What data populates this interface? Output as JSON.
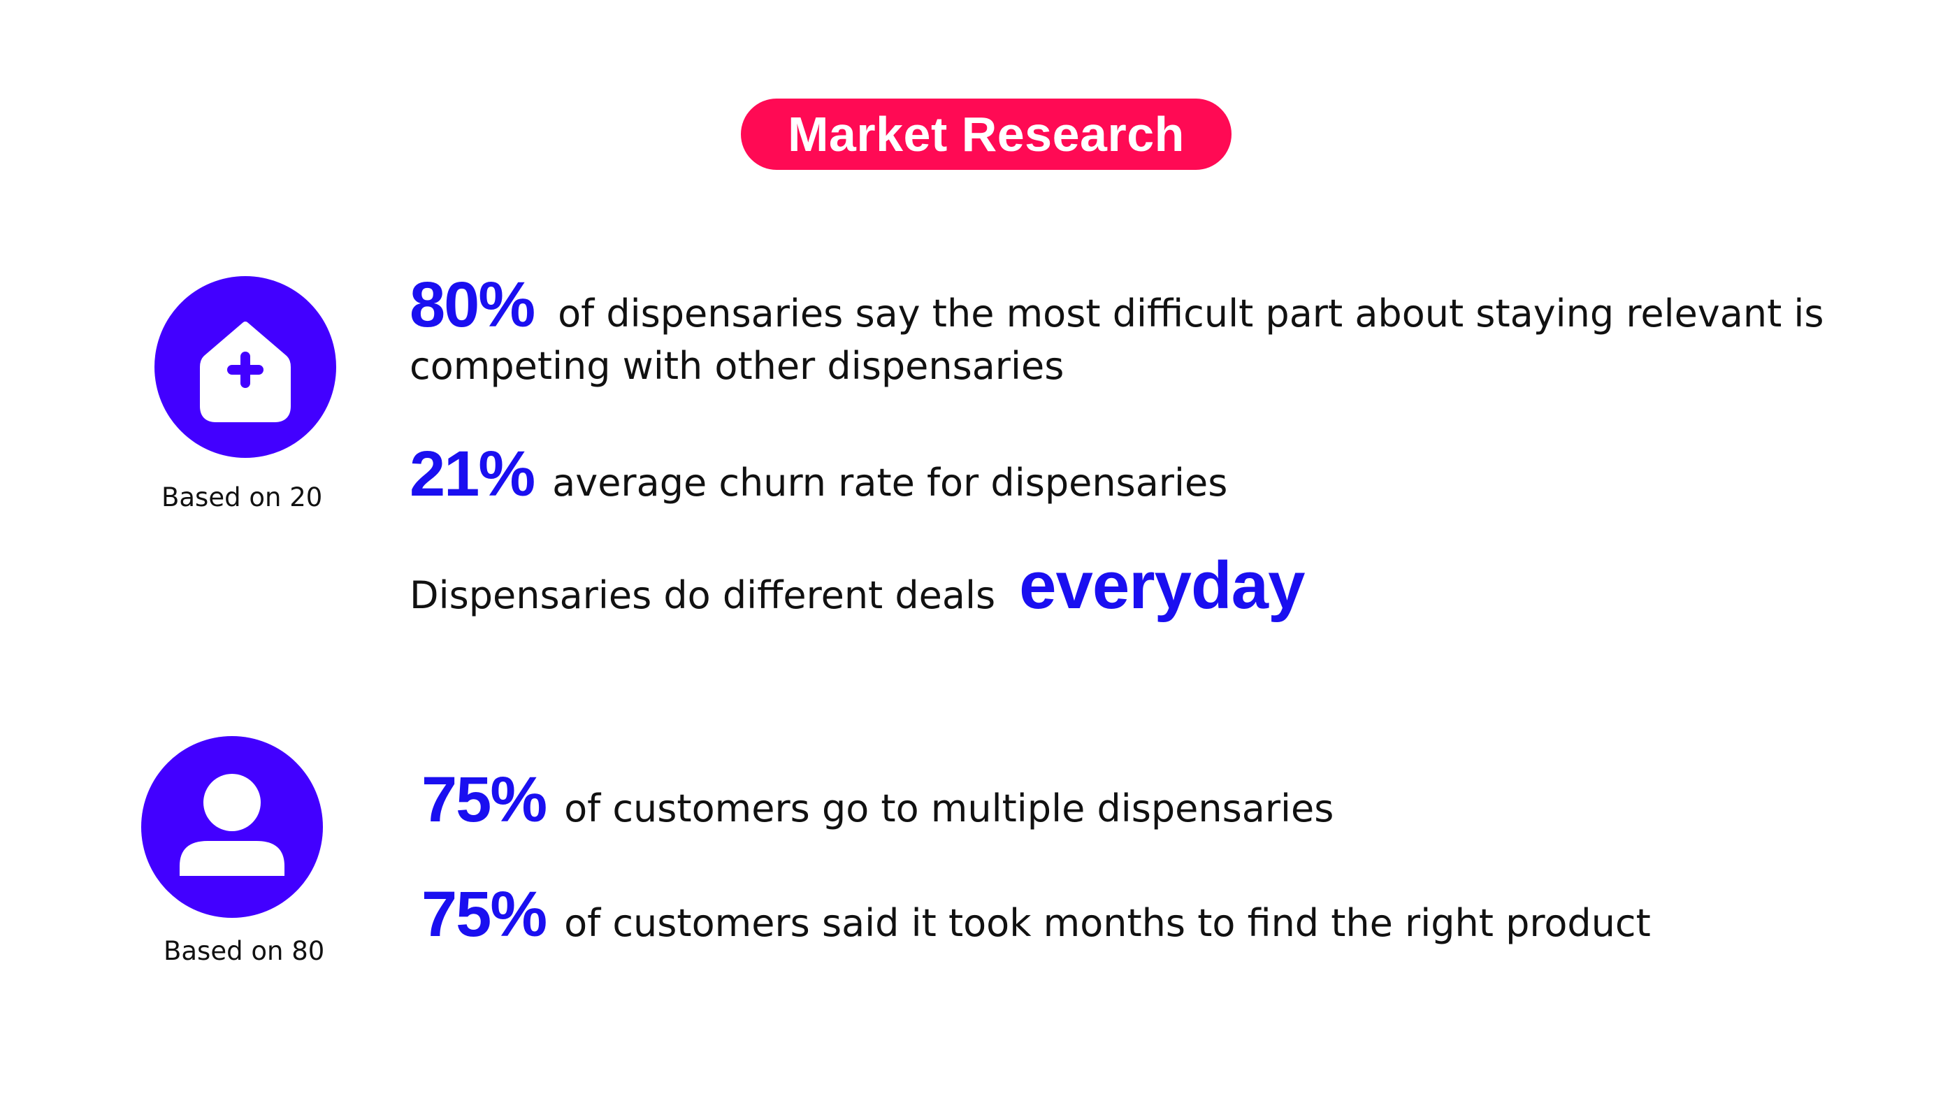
{
  "title": "Market Research",
  "colors": {
    "accent_pink": "#ff0a54",
    "icon_purple": "#4200ff",
    "stat_blue": "#1a0ff0",
    "text": "#111111"
  },
  "sections": [
    {
      "icon": "house-plus-icon",
      "caption": "Based on 20",
      "stats": [
        {
          "value": "80%",
          "text_line1": "of dispensaries say the most difficult part about staying relevant is",
          "text_line2": "competing with other dispensaries"
        },
        {
          "value": "21%",
          "text": "average churn rate for dispensaries"
        },
        {
          "prefix": "Dispensaries do different deals",
          "highlight": "everyday"
        }
      ]
    },
    {
      "icon": "person-icon",
      "caption": "Based on 80",
      "stats": [
        {
          "value": "75%",
          "text": "of customers go to multiple dispensaries"
        },
        {
          "value": "75%",
          "text": "of customers said it took months to find the right product"
        }
      ]
    }
  ]
}
